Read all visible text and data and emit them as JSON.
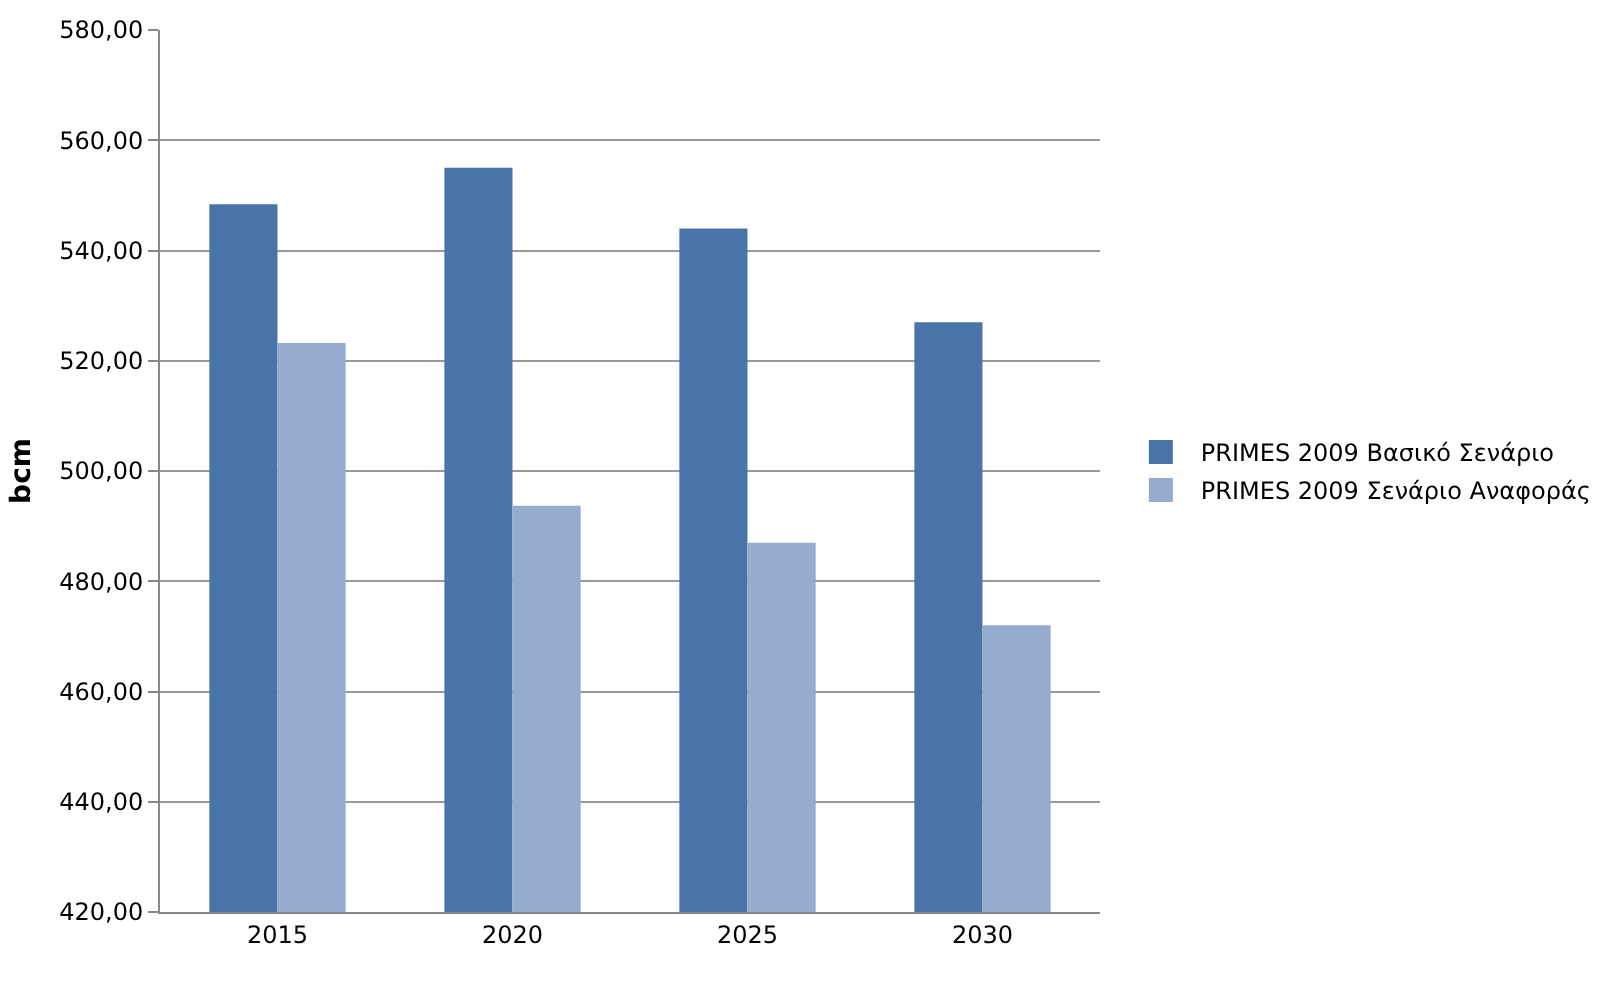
{
  "chart_data": {
    "type": "bar",
    "ylabel": "bcm",
    "categories": [
      "2015",
      "2020",
      "2025",
      "2030"
    ],
    "series": [
      {
        "name": "PRIMES 2009 Βασικό Σενάριο",
        "color": "#4a74a8",
        "values": [
          548.4,
          555,
          544,
          527
        ]
      },
      {
        "name": "PRIMES 2009 Σενάριο Αναφοράς",
        "color": "#95abd0",
        "values": [
          523.2,
          493.7,
          487,
          472
        ]
      }
    ],
    "ylim": [
      420,
      580
    ],
    "yticks": [
      {
        "value": 420,
        "label": "420,00"
      },
      {
        "value": 440,
        "label": "440,00"
      },
      {
        "value": 460,
        "label": "460,00"
      },
      {
        "value": 480,
        "label": "480,00"
      },
      {
        "value": 500,
        "label": "500,00"
      },
      {
        "value": 520,
        "label": "520,00"
      },
      {
        "value": 540,
        "label": "540,00"
      },
      {
        "value": 560,
        "label": "560,00"
      },
      {
        "value": 580,
        "label": "580,00"
      }
    ],
    "grid": "y",
    "legend": "right"
  }
}
